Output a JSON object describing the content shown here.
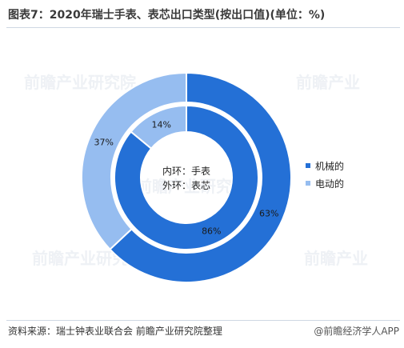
{
  "header": {
    "title": "图表7：2020年瑞士手表、表芯出口类型(按出口值)(单位：%)"
  },
  "chart_data": {
    "type": "pie",
    "style": "nested-donut",
    "center_label_lines": [
      "内环：手表",
      "外环：表芯"
    ],
    "categories": [
      "机械的",
      "电动的"
    ],
    "colors": [
      "#2470d6",
      "#96bdf0"
    ],
    "series": [
      {
        "name": "手表",
        "ring": "inner",
        "values": [
          86,
          14
        ],
        "labels": [
          "86%",
          "14%"
        ]
      },
      {
        "name": "表芯",
        "ring": "outer",
        "values": [
          63,
          37
        ],
        "labels": [
          "63%",
          "37%"
        ]
      }
    ],
    "legend": {
      "position": "right"
    }
  },
  "footer": {
    "source": "资料来源：瑞士钟表业联合会 前瞻产业研究院整理",
    "brand": "@前瞻经济学人APP"
  }
}
